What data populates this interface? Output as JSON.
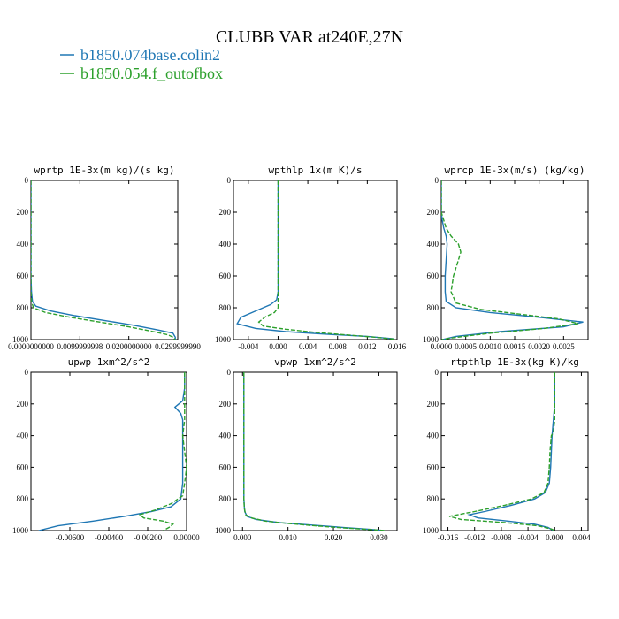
{
  "title": "CLUBB VAR at240E,27N",
  "legend": [
    {
      "label": "b1850.074base.colin2",
      "color": "#1f77b4"
    },
    {
      "label": "b1850.054.f_outofbox",
      "color": "#2ca02c"
    }
  ],
  "chart_data": [
    {
      "type": "line",
      "title": "wprtp  1E-3x(m kg)/(s kg)",
      "xlim": [
        0,
        0.03
      ],
      "ylim": [
        1000,
        0
      ],
      "xticks": [
        0,
        0.01,
        0.02,
        0.03
      ],
      "xtick_labels": [
        "0.0000000000",
        "0.0099999998",
        "0.0200000000",
        "0.0299999990"
      ],
      "yticks": [
        0,
        200,
        400,
        600,
        800,
        1000
      ],
      "ytick_labels": [
        "0",
        "200",
        "400",
        "600",
        "800",
        "1000"
      ],
      "series": [
        {
          "name": "b1850.074base.colin2",
          "style": "solid",
          "y": [
            0,
            200,
            400,
            600,
            700,
            760,
            790,
            820,
            850,
            880,
            910,
            940,
            960,
            985,
            1000
          ],
          "x": [
            0,
            0,
            0,
            0,
            0.0001,
            0.0003,
            0.001,
            0.004,
            0.009,
            0.015,
            0.021,
            0.026,
            0.029,
            0.0295,
            0.0295
          ]
        },
        {
          "name": "b1850.054.f_outofbox",
          "style": "dashed",
          "y": [
            0,
            200,
            400,
            600,
            700,
            760,
            800,
            830,
            860,
            890,
            920,
            950,
            970,
            985,
            1000
          ],
          "x": [
            0,
            0,
            0,
            0,
            0,
            0.0001,
            0.0005,
            0.003,
            0.008,
            0.014,
            0.02,
            0.025,
            0.028,
            0.029,
            0.0295
          ]
        }
      ]
    },
    {
      "type": "line",
      "title": "wpthlp  1x(m K)/s",
      "xlim": [
        -0.006,
        0.016
      ],
      "ylim": [
        1000,
        0
      ],
      "xticks": [
        -0.004,
        0,
        0.004,
        0.008,
        0.012,
        0.016
      ],
      "xtick_labels": [
        "-0.004",
        "0.000",
        "0.004",
        "0.008",
        "0.012",
        "0.016"
      ],
      "yticks": [
        0,
        200,
        400,
        600,
        800,
        1000
      ],
      "ytick_labels": [
        "0",
        "200",
        "400",
        "600",
        "800",
        "1000"
      ],
      "series": [
        {
          "name": "b1850.074base.colin2",
          "style": "solid",
          "y": [
            0,
            200,
            400,
            600,
            700,
            750,
            780,
            820,
            860,
            900,
            930,
            950,
            965,
            980,
            995
          ],
          "x": [
            0,
            0,
            0,
            0,
            0,
            -0.0002,
            -0.001,
            -0.003,
            -0.005,
            -0.0055,
            -0.003,
            0.001,
            0.006,
            0.012,
            0.0155
          ]
        },
        {
          "name": "b1850.054.f_outofbox",
          "style": "dashed",
          "y": [
            0,
            200,
            400,
            600,
            700,
            800,
            830,
            860,
            890,
            915,
            935,
            955,
            970,
            985,
            998
          ],
          "x": [
            0,
            0,
            0,
            0,
            0,
            0,
            -0.0005,
            -0.0018,
            -0.0026,
            -0.002,
            0.001,
            0.005,
            0.009,
            0.013,
            0.0157
          ]
        }
      ]
    },
    {
      "type": "line",
      "title": "wprcp  1E-3x(m/s) (kg/kg)",
      "xlim": [
        0,
        0.003
      ],
      "ylim": [
        1000,
        0
      ],
      "xticks": [
        0,
        0.0005,
        0.001,
        0.0015,
        0.002,
        0.0025
      ],
      "xtick_labels": [
        "0.0000",
        "0.0005",
        "0.0010",
        "0.0015",
        "0.0020",
        "0.0025"
      ],
      "yticks": [
        0,
        200,
        400,
        600,
        800,
        1000
      ],
      "ytick_labels": [
        "0",
        "200",
        "400",
        "600",
        "800",
        "1000"
      ],
      "series": [
        {
          "name": "b1850.074base.colin2",
          "style": "solid",
          "y": [
            0,
            200,
            250,
            300,
            350,
            400,
            500,
            600,
            700,
            760,
            800,
            830,
            860,
            890,
            920,
            950,
            980,
            1000
          ],
          "x": [
            0,
            0,
            2e-05,
            5e-05,
            0.0001,
            0.00012,
            0.0001,
            8e-05,
            8e-05,
            0.0001,
            0.0003,
            0.001,
            0.002,
            0.0029,
            0.0025,
            0.0012,
            0.0003,
            2e-05
          ]
        },
        {
          "name": "b1850.054.f_outofbox",
          "style": "dashed",
          "y": [
            0,
            200,
            250,
            300,
            350,
            400,
            450,
            500,
            600,
            700,
            770,
            810,
            840,
            870,
            900,
            930,
            960,
            990,
            1000
          ],
          "x": [
            0,
            0,
            5e-05,
            0.0001,
            0.0002,
            0.00035,
            0.0004,
            0.00035,
            0.00025,
            0.0002,
            0.0003,
            0.0008,
            0.0016,
            0.0024,
            0.0028,
            0.0021,
            0.001,
            0.0002,
            1e-05
          ]
        }
      ]
    },
    {
      "type": "line",
      "title": "upwp  1xm^2/s^2",
      "xlim": [
        -0.008,
        0
      ],
      "ylim": [
        1000,
        0
      ],
      "xticks": [
        -0.006,
        -0.004,
        -0.002,
        0
      ],
      "xtick_labels": [
        "-0.00600",
        "-0.00400",
        "-0.00200",
        "0.00000"
      ],
      "yticks": [
        0,
        200,
        400,
        600,
        800,
        1000
      ],
      "ytick_labels": [
        "0",
        "200",
        "400",
        "600",
        "800",
        "1000"
      ],
      "series": [
        {
          "name": "b1850.074base.colin2",
          "style": "solid",
          "y": [
            0,
            100,
            180,
            220,
            260,
            300,
            400,
            500,
            600,
            700,
            800,
            850,
            880,
            910,
            940,
            970,
            1000
          ],
          "x": [
            -0.0001,
            -0.0001,
            -0.0002,
            -0.0006,
            -0.0003,
            -0.0002,
            -0.0002,
            -0.0002,
            -0.0002,
            -0.0002,
            -0.0003,
            -0.0008,
            -0.0018,
            -0.0032,
            -0.0048,
            -0.0066,
            -0.0076
          ]
        },
        {
          "name": "b1850.054.f_outofbox",
          "style": "dashed",
          "y": [
            0,
            100,
            200,
            300,
            400,
            500,
            600,
            700,
            780,
            830,
            870,
            900,
            920,
            940,
            960,
            980,
            1000
          ],
          "x": [
            -0.0001,
            -0.0001,
            -0.0001,
            -0.0001,
            -0.0002,
            -0.0001,
            0,
            -0.0001,
            -0.0002,
            -0.0008,
            -0.0016,
            -0.0024,
            -0.0022,
            -0.0012,
            -0.0007,
            -0.0009,
            -0.0012
          ]
        }
      ]
    },
    {
      "type": "line",
      "title": "vpwp  1xm^2/s^2",
      "xlim": [
        -0.002,
        0.034
      ],
      "ylim": [
        1000,
        0
      ],
      "xticks": [
        0,
        0.01,
        0.02,
        0.03
      ],
      "xtick_labels": [
        "0.000",
        "0.010",
        "0.020",
        "0.030"
      ],
      "yticks": [
        0,
        200,
        400,
        600,
        800,
        1000
      ],
      "ytick_labels": [
        "0",
        "200",
        "400",
        "600",
        "800",
        "1000"
      ],
      "series": [
        {
          "name": "b1850.074base.colin2",
          "style": "solid",
          "y": [
            0,
            200,
            400,
            600,
            700,
            800,
            850,
            880,
            910,
            930,
            950,
            965,
            980,
            992,
            1000
          ],
          "x": [
            0.0003,
            0.0003,
            0.0003,
            0.0003,
            0.0003,
            0.0003,
            0.0004,
            0.0005,
            0.001,
            0.003,
            0.008,
            0.015,
            0.022,
            0.028,
            0.031
          ]
        },
        {
          "name": "b1850.054.f_outofbox",
          "style": "dashed",
          "y": [
            0,
            200,
            400,
            600,
            700,
            800,
            860,
            900,
            920,
            940,
            955,
            970,
            985,
            995,
            1000
          ],
          "x": [
            0.0003,
            0.0003,
            0.0003,
            0.0003,
            0.0003,
            0.0003,
            0.0004,
            0.0007,
            0.002,
            0.005,
            0.01,
            0.016,
            0.023,
            0.029,
            0.0315
          ]
        }
      ]
    },
    {
      "type": "line",
      "title": "rtpthlp  1E-3x(kg K)/kg",
      "xlim": [
        -0.017,
        0.005
      ],
      "ylim": [
        1000,
        0
      ],
      "xticks": [
        -0.016,
        -0.012,
        -0.008,
        -0.004,
        0,
        0.004
      ],
      "xtick_labels": [
        "-0.016",
        "-0.012",
        "-0.008",
        "-0.004",
        "0.000",
        "0.004"
      ],
      "yticks": [
        0,
        200,
        400,
        600,
        800,
        1000
      ],
      "ytick_labels": [
        "0",
        "200",
        "400",
        "600",
        "800",
        "1000"
      ],
      "series": [
        {
          "name": "b1850.074base.colin2",
          "style": "solid",
          "y": [
            0,
            100,
            200,
            300,
            400,
            500,
            600,
            700,
            760,
            800,
            840,
            880,
            900,
            920,
            940,
            960,
            980,
            1000
          ],
          "x": [
            0,
            0,
            0,
            -0.0002,
            -0.0004,
            -0.0005,
            -0.0006,
            -0.0008,
            -0.0014,
            -0.003,
            -0.0065,
            -0.0105,
            -0.0128,
            -0.0115,
            -0.007,
            -0.003,
            -0.001,
            -0.0002
          ]
        },
        {
          "name": "b1850.054.f_outofbox",
          "style": "dashed",
          "y": [
            0,
            100,
            200,
            300,
            380,
            400,
            500,
            600,
            700,
            760,
            800,
            840,
            880,
            910,
            930,
            950,
            970,
            990,
            1000
          ],
          "x": [
            0,
            0,
            0,
            0,
            -0.0002,
            -0.0005,
            -0.0007,
            -0.0008,
            -0.001,
            -0.0016,
            -0.0035,
            -0.0075,
            -0.012,
            -0.0158,
            -0.014,
            -0.0075,
            -0.0025,
            -0.0005,
            0
          ]
        }
      ]
    }
  ]
}
